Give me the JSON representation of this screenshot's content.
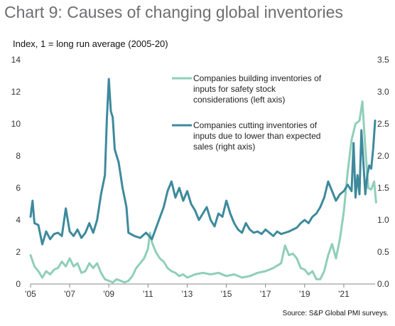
{
  "title": "Chart 9: Causes of changing global inventories",
  "subtitle": "Index, 1 = long run average (2005-20)",
  "source": "Source: S&P Global PMI surveys.",
  "colors": {
    "safety": "#8fcfb8",
    "cutting": "#3d8a9c",
    "axis": "#888888"
  },
  "chart_data": {
    "type": "line",
    "x_tick_labels": [
      "'05",
      "'07",
      "'09",
      "'11",
      "'13",
      "'15",
      "'17",
      "'19",
      "'21"
    ],
    "x_tick_years": [
      2005,
      2007,
      2009,
      2011,
      2013,
      2015,
      2017,
      2019,
      2021
    ],
    "xlim": [
      2005.0,
      2022.6
    ],
    "left_axis": {
      "ylim": [
        0,
        14
      ],
      "ticks": [
        "0",
        "2",
        "4",
        "6",
        "8",
        "10",
        "12",
        "14"
      ]
    },
    "right_axis": {
      "ylim": [
        0,
        3.5
      ],
      "ticks": [
        "0.0",
        "0.5",
        "1.0",
        "1.5",
        "2.0",
        "2.5",
        "3.0",
        "3.5"
      ]
    },
    "series": [
      {
        "name": "Companies building inventories of inputs for safety stock considerations (left axis)",
        "legend_lines": [
          "Companies building inventories of",
          "inputs for safety stock",
          "considerations (left axis)"
        ],
        "axis": "left",
        "points": [
          [
            2005.0,
            1.8
          ],
          [
            2005.2,
            1.1
          ],
          [
            2005.4,
            0.8
          ],
          [
            2005.6,
            0.4
          ],
          [
            2005.8,
            0.8
          ],
          [
            2006.0,
            0.6
          ],
          [
            2006.2,
            0.9
          ],
          [
            2006.4,
            1.0
          ],
          [
            2006.6,
            1.4
          ],
          [
            2006.8,
            1.1
          ],
          [
            2007.0,
            1.6
          ],
          [
            2007.2,
            1.1
          ],
          [
            2007.4,
            1.3
          ],
          [
            2007.6,
            0.7
          ],
          [
            2007.8,
            0.8
          ],
          [
            2008.0,
            1.3
          ],
          [
            2008.2,
            1.0
          ],
          [
            2008.4,
            1.3
          ],
          [
            2008.6,
            0.7
          ],
          [
            2008.8,
            0.3
          ],
          [
            2009.0,
            0.2
          ],
          [
            2009.2,
            0.1
          ],
          [
            2009.4,
            0.3
          ],
          [
            2009.6,
            0.2
          ],
          [
            2009.8,
            0.1
          ],
          [
            2010.0,
            0.2
          ],
          [
            2010.2,
            0.5
          ],
          [
            2010.4,
            1.0
          ],
          [
            2010.6,
            1.3
          ],
          [
            2010.8,
            1.6
          ],
          [
            2011.0,
            2.2
          ],
          [
            2011.1,
            3.2
          ],
          [
            2011.2,
            2.6
          ],
          [
            2011.4,
            2.0
          ],
          [
            2011.6,
            1.6
          ],
          [
            2011.8,
            1.4
          ],
          [
            2012.0,
            1.0
          ],
          [
            2012.2,
            0.8
          ],
          [
            2012.4,
            0.7
          ],
          [
            2012.6,
            0.5
          ],
          [
            2012.8,
            0.6
          ],
          [
            2013.0,
            0.4
          ],
          [
            2013.4,
            0.6
          ],
          [
            2013.8,
            0.7
          ],
          [
            2014.2,
            0.6
          ],
          [
            2014.6,
            0.7
          ],
          [
            2015.0,
            0.5
          ],
          [
            2015.4,
            0.6
          ],
          [
            2015.8,
            0.4
          ],
          [
            2016.2,
            0.5
          ],
          [
            2016.6,
            0.7
          ],
          [
            2017.0,
            0.8
          ],
          [
            2017.4,
            1.0
          ],
          [
            2017.8,
            1.3
          ],
          [
            2018.0,
            2.4
          ],
          [
            2018.2,
            1.8
          ],
          [
            2018.4,
            1.9
          ],
          [
            2018.6,
            1.6
          ],
          [
            2018.8,
            1.0
          ],
          [
            2019.0,
            0.9
          ],
          [
            2019.2,
            0.6
          ],
          [
            2019.4,
            0.8
          ],
          [
            2019.6,
            0.3
          ],
          [
            2019.8,
            0.3
          ],
          [
            2020.0,
            0.8
          ],
          [
            2020.2,
            1.8
          ],
          [
            2020.4,
            2.5
          ],
          [
            2020.6,
            1.6
          ],
          [
            2020.8,
            2.8
          ],
          [
            2021.0,
            4.5
          ],
          [
            2021.2,
            7.0
          ],
          [
            2021.4,
            9.0
          ],
          [
            2021.6,
            10.0
          ],
          [
            2021.8,
            10.2
          ],
          [
            2021.95,
            11.4
          ],
          [
            2022.1,
            8.5
          ],
          [
            2022.25,
            6.0
          ],
          [
            2022.4,
            5.9
          ],
          [
            2022.55,
            6.4
          ],
          [
            2022.65,
            5.1
          ]
        ]
      },
      {
        "name": "Companies cutting inventories of inputs due to lower than expected sales (right axis)",
        "legend_lines": [
          "Companies cutting inventories of",
          "inputs due to lower than expected",
          "sales (right axis)"
        ],
        "axis": "right",
        "points": [
          [
            2005.0,
            1.05
          ],
          [
            2005.1,
            1.3
          ],
          [
            2005.2,
            0.95
          ],
          [
            2005.4,
            0.92
          ],
          [
            2005.6,
            0.62
          ],
          [
            2005.8,
            0.82
          ],
          [
            2006.0,
            0.7
          ],
          [
            2006.2,
            0.78
          ],
          [
            2006.4,
            0.8
          ],
          [
            2006.6,
            0.75
          ],
          [
            2006.8,
            1.18
          ],
          [
            2007.0,
            0.82
          ],
          [
            2007.2,
            0.75
          ],
          [
            2007.4,
            0.85
          ],
          [
            2007.6,
            0.72
          ],
          [
            2007.8,
            0.8
          ],
          [
            2008.0,
            0.95
          ],
          [
            2008.2,
            0.8
          ],
          [
            2008.4,
            1.0
          ],
          [
            2008.6,
            1.4
          ],
          [
            2008.8,
            1.7
          ],
          [
            2008.9,
            2.6
          ],
          [
            2009.0,
            3.2
          ],
          [
            2009.1,
            2.7
          ],
          [
            2009.2,
            2.6
          ],
          [
            2009.3,
            2.1
          ],
          [
            2009.5,
            1.9
          ],
          [
            2009.7,
            1.5
          ],
          [
            2009.9,
            1.2
          ],
          [
            2010.0,
            0.8
          ],
          [
            2010.3,
            0.75
          ],
          [
            2010.6,
            0.72
          ],
          [
            2010.9,
            0.8
          ],
          [
            2011.2,
            0.7
          ],
          [
            2011.5,
            0.95
          ],
          [
            2011.8,
            1.2
          ],
          [
            2012.0,
            1.45
          ],
          [
            2012.2,
            1.6
          ],
          [
            2012.4,
            1.35
          ],
          [
            2012.6,
            1.5
          ],
          [
            2012.8,
            1.3
          ],
          [
            2013.0,
            1.45
          ],
          [
            2013.2,
            1.25
          ],
          [
            2013.4,
            1.15
          ],
          [
            2013.6,
            1.0
          ],
          [
            2013.8,
            1.1
          ],
          [
            2014.0,
            1.2
          ],
          [
            2014.2,
            1.0
          ],
          [
            2014.4,
            0.9
          ],
          [
            2014.6,
            1.1
          ],
          [
            2014.8,
            1.05
          ],
          [
            2015.0,
            1.3
          ],
          [
            2015.2,
            1.1
          ],
          [
            2015.4,
            0.95
          ],
          [
            2015.6,
            0.85
          ],
          [
            2015.8,
            0.8
          ],
          [
            2016.0,
            0.95
          ],
          [
            2016.2,
            0.85
          ],
          [
            2016.4,
            0.8
          ],
          [
            2016.6,
            0.82
          ],
          [
            2016.8,
            0.78
          ],
          [
            2017.0,
            0.85
          ],
          [
            2017.2,
            0.8
          ],
          [
            2017.4,
            0.75
          ],
          [
            2017.6,
            0.82
          ],
          [
            2017.8,
            0.78
          ],
          [
            2018.0,
            0.8
          ],
          [
            2018.2,
            0.82
          ],
          [
            2018.4,
            0.85
          ],
          [
            2018.6,
            0.88
          ],
          [
            2018.8,
            0.95
          ],
          [
            2019.0,
            1.0
          ],
          [
            2019.2,
            0.95
          ],
          [
            2019.4,
            1.05
          ],
          [
            2019.6,
            1.1
          ],
          [
            2019.8,
            1.2
          ],
          [
            2020.0,
            1.35
          ],
          [
            2020.2,
            1.6
          ],
          [
            2020.4,
            1.45
          ],
          [
            2020.6,
            1.3
          ],
          [
            2020.8,
            1.4
          ],
          [
            2021.0,
            1.45
          ],
          [
            2021.2,
            1.55
          ],
          [
            2021.4,
            1.45
          ],
          [
            2021.5,
            2.2
          ],
          [
            2021.6,
            1.35
          ],
          [
            2021.7,
            1.7
          ],
          [
            2021.8,
            1.4
          ],
          [
            2021.9,
            2.4
          ],
          [
            2022.0,
            1.9
          ],
          [
            2022.1,
            1.4
          ],
          [
            2022.2,
            1.7
          ],
          [
            2022.3,
            1.85
          ],
          [
            2022.4,
            1.8
          ],
          [
            2022.5,
            2.1
          ],
          [
            2022.6,
            2.55
          ]
        ]
      }
    ]
  }
}
